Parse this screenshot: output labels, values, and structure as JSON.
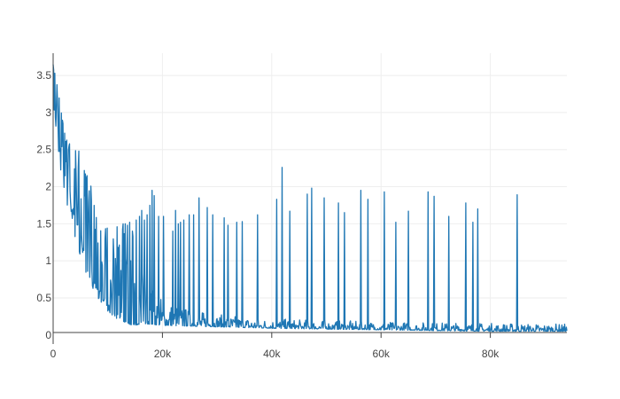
{
  "chart_data": {
    "type": "line",
    "title": "",
    "xlabel": "",
    "ylabel": "",
    "xlim": [
      0,
      94000
    ],
    "ylim": [
      -0.05,
      3.8
    ],
    "x_ticks": [
      {
        "value": 0,
        "label": "0"
      },
      {
        "value": 20000,
        "label": "20k"
      },
      {
        "value": 40000,
        "label": "40k"
      },
      {
        "value": 60000,
        "label": "60k"
      },
      {
        "value": 80000,
        "label": "80k"
      }
    ],
    "y_ticks": [
      {
        "value": 0,
        "label": "0"
      },
      {
        "value": 0.5,
        "label": "0.5"
      },
      {
        "value": 1,
        "label": "1"
      },
      {
        "value": 1.5,
        "label": "1.5"
      },
      {
        "value": 2,
        "label": "2"
      },
      {
        "value": 2.5,
        "label": "2.5"
      },
      {
        "value": 3,
        "label": "3"
      },
      {
        "value": 3.5,
        "label": "3.5"
      }
    ],
    "grid": true,
    "legend": "none",
    "series": [
      {
        "color": "#1f77b4",
        "baseline": [
          [
            0,
            3.6
          ],
          [
            1000,
            3.1
          ],
          [
            2000,
            2.55
          ],
          [
            3000,
            2.1
          ],
          [
            4000,
            1.7
          ],
          [
            5000,
            1.38
          ],
          [
            6000,
            1.1
          ],
          [
            7000,
            0.88
          ],
          [
            8000,
            0.7
          ],
          [
            9000,
            0.55
          ],
          [
            10000,
            0.42
          ],
          [
            11000,
            0.34
          ],
          [
            12000,
            0.27
          ],
          [
            13000,
            0.22
          ],
          [
            14000,
            0.19
          ],
          [
            15000,
            0.17
          ],
          [
            17000,
            0.15
          ],
          [
            20000,
            0.13
          ],
          [
            25000,
            0.12
          ],
          [
            30000,
            0.11
          ],
          [
            40000,
            0.09
          ],
          [
            50000,
            0.08
          ],
          [
            60000,
            0.07
          ],
          [
            70000,
            0.06
          ],
          [
            80000,
            0.05
          ],
          [
            94000,
            0.05
          ]
        ],
        "envelope_upper": [
          [
            0,
            3.65
          ],
          [
            1000,
            3.3
          ],
          [
            2000,
            3.0
          ],
          [
            3000,
            2.8
          ],
          [
            4000,
            2.6
          ],
          [
            5000,
            2.5
          ],
          [
            6000,
            2.2
          ],
          [
            7000,
            2.05
          ],
          [
            8000,
            1.85
          ],
          [
            9000,
            1.7
          ],
          [
            10000,
            1.6
          ],
          [
            11000,
            1.55
          ],
          [
            12000,
            1.5
          ],
          [
            13000,
            1.48
          ],
          [
            14000,
            1.45
          ],
          [
            15000,
            1.4
          ],
          [
            16000,
            1.2
          ],
          [
            17000,
            0.8
          ],
          [
            20000,
            0.5
          ],
          [
            25000,
            0.35
          ],
          [
            30000,
            0.28
          ],
          [
            40000,
            0.22
          ],
          [
            60000,
            0.18
          ],
          [
            94000,
            0.15
          ]
        ],
        "spikes": [
          [
            12800,
            1.5
          ],
          [
            13200,
            1.5
          ],
          [
            13600,
            1.48
          ],
          [
            14000,
            1.52
          ],
          [
            14500,
            1.4
          ],
          [
            15200,
            1.55
          ],
          [
            15800,
            1.6
          ],
          [
            16200,
            1.68
          ],
          [
            16700,
            1.55
          ],
          [
            17200,
            1.62
          ],
          [
            17700,
            1.75
          ],
          [
            18100,
            1.95
          ],
          [
            18500,
            1.88
          ],
          [
            19300,
            1.6
          ],
          [
            20200,
            1.6
          ],
          [
            21900,
            1.4
          ],
          [
            22400,
            1.68
          ],
          [
            22900,
            1.5
          ],
          [
            23300,
            1.52
          ],
          [
            23900,
            1.55
          ],
          [
            24900,
            1.62
          ],
          [
            25700,
            1.62
          ],
          [
            26700,
            1.85
          ],
          [
            28200,
            1.72
          ],
          [
            29200,
            1.62
          ],
          [
            31300,
            1.58
          ],
          [
            32000,
            1.48
          ],
          [
            33600,
            1.52
          ],
          [
            34600,
            1.53
          ],
          [
            37400,
            1.62
          ],
          [
            40900,
            1.83
          ],
          [
            41900,
            2.26
          ],
          [
            43300,
            1.67
          ],
          [
            46500,
            1.9
          ],
          [
            47300,
            1.98
          ],
          [
            49600,
            1.85
          ],
          [
            52200,
            1.78
          ],
          [
            53300,
            1.65
          ],
          [
            56300,
            1.95
          ],
          [
            57600,
            1.83
          ],
          [
            60600,
            1.93
          ],
          [
            62700,
            1.52
          ],
          [
            65000,
            1.67
          ],
          [
            68600,
            1.93
          ],
          [
            69700,
            1.87
          ],
          [
            72400,
            1.6
          ],
          [
            75500,
            1.78
          ],
          [
            76800,
            1.52
          ],
          [
            77700,
            1.7
          ],
          [
            84900,
            1.89
          ]
        ]
      }
    ]
  }
}
